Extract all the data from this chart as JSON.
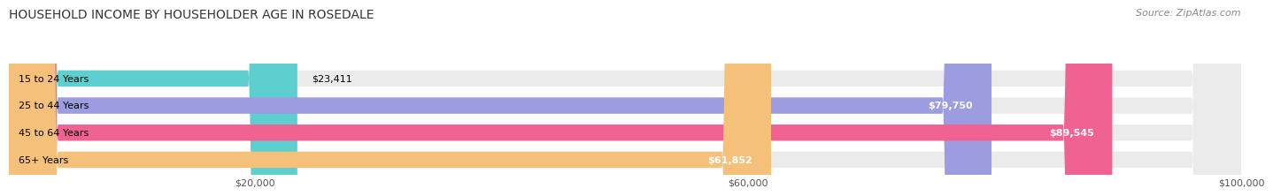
{
  "title": "HOUSEHOLD INCOME BY HOUSEHOLDER AGE IN ROSEDALE",
  "source": "Source: ZipAtlas.com",
  "categories": [
    "15 to 24 Years",
    "25 to 44 Years",
    "45 to 64 Years",
    "65+ Years"
  ],
  "values": [
    23411,
    79750,
    89545,
    61852
  ],
  "bar_colors": [
    "#5ecfcf",
    "#9b9de0",
    "#f06292",
    "#f5c07a"
  ],
  "x_max": 100000,
  "x_ticks": [
    20000,
    60000,
    100000
  ],
  "x_tick_labels": [
    "$20,000",
    "$60,000",
    "$100,000"
  ],
  "value_labels": [
    "$23,411",
    "$79,750",
    "$89,545",
    "$61,852"
  ],
  "title_fontsize": 10,
  "source_fontsize": 8,
  "label_fontsize": 8,
  "value_fontsize": 8,
  "background_color": "#ffffff",
  "bar_bg": "#ebebeb"
}
